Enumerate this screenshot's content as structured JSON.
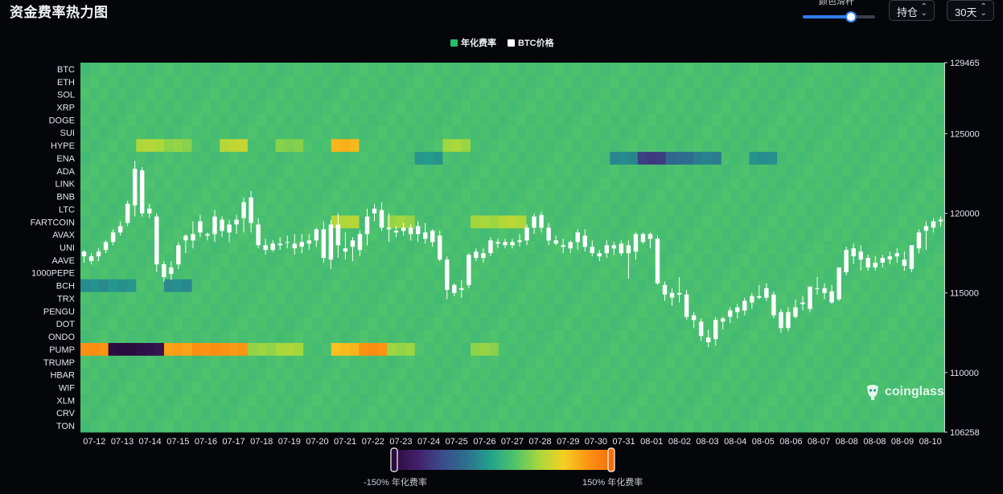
{
  "header": {
    "title": "资金费率热力图",
    "slider_label": "颜色滑杆",
    "slider_value": 0.67,
    "position_select": "持仓",
    "period_select": "30天"
  },
  "legend": {
    "items": [
      {
        "label": "年化费率",
        "color": "#22c06a"
      },
      {
        "label": "BTC价格",
        "color": "#ffffff"
      }
    ]
  },
  "color_scale": {
    "min_label": "-150% 年化费率",
    "max_label": "150% 年化费率",
    "colors": [
      "#2b0a3d",
      "#43206a",
      "#3b4b8c",
      "#2d6f8f",
      "#23a28c",
      "#4fc36b",
      "#a7d83c",
      "#f5cf22",
      "#fb9414",
      "#f56f0c"
    ]
  },
  "watermark": "coinglass",
  "chart_data": {
    "type": "heatmap",
    "title": "资金费率热力图",
    "rows": [
      "BTC",
      "ETH",
      "SOL",
      "XRP",
      "DOGE",
      "SUI",
      "HYPE",
      "ENA",
      "ADA",
      "LINK",
      "BNB",
      "LTC",
      "FARTCOIN",
      "AVAX",
      "UNI",
      "AAVE",
      "1000PEPE",
      "BCH",
      "TRX",
      "PENGU",
      "DOT",
      "ONDO",
      "PUMP",
      "TRUMP",
      "HBAR",
      "WIF",
      "XLM",
      "CRV",
      "TON"
    ],
    "x_labels": [
      "07-12",
      "07-13",
      "07-14",
      "07-15",
      "07-16",
      "07-17",
      "07-18",
      "07-19",
      "07-20",
      "07-21",
      "07-22",
      "07-23",
      "07-24",
      "07-25",
      "07-26",
      "07-27",
      "07-28",
      "07-29",
      "07-30",
      "07-31",
      "08-01",
      "08-02",
      "08-03",
      "08-04",
      "08-05",
      "08-06",
      "08-07",
      "08-08",
      "08-08",
      "08-09",
      "08-10"
    ],
    "colorscale_range": [
      -150,
      150
    ],
    "y2_label": "BTC价格",
    "y2_ticks": [
      129465,
      125000,
      120000,
      115000,
      110000,
      106258
    ],
    "y2_range": [
      106258,
      129465
    ],
    "btc_price_ohlc": [
      [
        117300,
        117700,
        116900,
        117600
      ],
      [
        117000,
        117500,
        116800,
        117300
      ],
      [
        117300,
        117800,
        117000,
        117600
      ],
      [
        117700,
        118300,
        117500,
        118200
      ],
      [
        118200,
        119000,
        118000,
        118800
      ],
      [
        118800,
        119500,
        118600,
        119200
      ],
      [
        119400,
        120800,
        119200,
        120600
      ],
      [
        120500,
        123300,
        119800,
        122800
      ],
      [
        122700,
        122900,
        119800,
        120000
      ],
      [
        120000,
        120600,
        119700,
        120300
      ],
      [
        119800,
        120000,
        116300,
        116800
      ],
      [
        116800,
        117000,
        115700,
        116000
      ],
      [
        116200,
        117000,
        115800,
        116600
      ],
      [
        116800,
        118200,
        116500,
        118000
      ],
      [
        118300,
        118700,
        117500,
        118600
      ],
      [
        118300,
        119500,
        117800,
        118700
      ],
      [
        118800,
        119900,
        118500,
        119500
      ],
      [
        118600,
        118800,
        118300,
        118700
      ],
      [
        118700,
        120200,
        118200,
        119800
      ],
      [
        119600,
        119800,
        118500,
        118900
      ],
      [
        118800,
        119600,
        118200,
        119300
      ],
      [
        119300,
        119900,
        118700,
        119600
      ],
      [
        119700,
        121000,
        118800,
        120700
      ],
      [
        121000,
        121400,
        118800,
        119400
      ],
      [
        119300,
        119700,
        117800,
        118000
      ],
      [
        118000,
        118400,
        117400,
        117700
      ],
      [
        117700,
        118300,
        117600,
        118100
      ],
      [
        118000,
        118500,
        117700,
        118100
      ],
      [
        118200,
        118600,
        117800,
        118200
      ],
      [
        118100,
        118700,
        117400,
        117800
      ],
      [
        117900,
        118700,
        117500,
        118200
      ],
      [
        118100,
        118700,
        117700,
        118300
      ],
      [
        118300,
        119100,
        117900,
        119000
      ],
      [
        119000,
        119500,
        116900,
        117200
      ],
      [
        117100,
        119600,
        116500,
        119300
      ],
      [
        119300,
        120000,
        117200,
        118000
      ],
      [
        117600,
        118800,
        117100,
        117800
      ],
      [
        117900,
        118500,
        117000,
        118300
      ],
      [
        117700,
        118900,
        117300,
        118700
      ],
      [
        118700,
        120300,
        118000,
        119800
      ],
      [
        120000,
        120600,
        119500,
        120300
      ],
      [
        120200,
        120700,
        118900,
        119100
      ],
      [
        119100,
        120000,
        118200,
        119000
      ],
      [
        118900,
        119200,
        118500,
        118800
      ],
      [
        118900,
        119400,
        118600,
        119100
      ],
      [
        119100,
        119300,
        118300,
        118700
      ],
      [
        118700,
        119500,
        118200,
        119200
      ],
      [
        118800,
        119400,
        118100,
        118400
      ],
      [
        118200,
        119000,
        117900,
        118900
      ],
      [
        118600,
        118900,
        117000,
        117100
      ],
      [
        117100,
        117300,
        114600,
        115200
      ],
      [
        115000,
        115600,
        114800,
        115500
      ],
      [
        115200,
        115800,
        114700,
        115300
      ],
      [
        115500,
        117500,
        115300,
        117400
      ],
      [
        117200,
        117800,
        117000,
        117600
      ],
      [
        117200,
        117800,
        116900,
        117500
      ],
      [
        117500,
        118500,
        117300,
        118300
      ],
      [
        118200,
        118400,
        117800,
        118100
      ],
      [
        118000,
        118400,
        117800,
        118200
      ],
      [
        118000,
        118400,
        117800,
        118200
      ],
      [
        118200,
        118700,
        117900,
        118300
      ],
      [
        118300,
        119300,
        118000,
        119100
      ],
      [
        119100,
        120000,
        118700,
        119800
      ],
      [
        119900,
        120100,
        118800,
        119100
      ],
      [
        119100,
        119400,
        118000,
        118300
      ],
      [
        118300,
        118600,
        118000,
        118100
      ],
      [
        118000,
        118400,
        117500,
        117900
      ],
      [
        117800,
        118300,
        117500,
        118200
      ],
      [
        118200,
        119000,
        117700,
        118800
      ],
      [
        118600,
        119000,
        117600,
        117900
      ],
      [
        117900,
        118300,
        117300,
        117500
      ],
      [
        117500,
        117700,
        117000,
        117300
      ],
      [
        117500,
        118300,
        117200,
        118000
      ],
      [
        118000,
        118200,
        117400,
        117800
      ],
      [
        117500,
        118300,
        117300,
        118100
      ],
      [
        118000,
        118300,
        115900,
        117500
      ],
      [
        117600,
        118800,
        117100,
        118700
      ],
      [
        118700,
        118800,
        118100,
        118200
      ],
      [
        118400,
        118800,
        117800,
        118700
      ],
      [
        118400,
        118600,
        115500,
        115600
      ],
      [
        115500,
        115700,
        114500,
        114900
      ],
      [
        115000,
        115300,
        114200,
        114700
      ],
      [
        114900,
        116000,
        114400,
        115000
      ],
      [
        114900,
        115200,
        113300,
        113500
      ],
      [
        113600,
        113800,
        112800,
        113300
      ],
      [
        113200,
        113400,
        112000,
        112300
      ],
      [
        112200,
        112700,
        111600,
        111900
      ],
      [
        112100,
        113500,
        111700,
        113300
      ],
      [
        113200,
        113500,
        112700,
        113400
      ],
      [
        113500,
        114100,
        113100,
        113900
      ],
      [
        113800,
        114300,
        113400,
        114100
      ],
      [
        113900,
        114700,
        113600,
        114500
      ],
      [
        114400,
        115000,
        114000,
        114800
      ],
      [
        114700,
        115500,
        114600,
        114800
      ],
      [
        114700,
        115600,
        114500,
        115300
      ],
      [
        114900,
        115100,
        113400,
        113600
      ],
      [
        113800,
        114000,
        112500,
        112800
      ],
      [
        112800,
        114100,
        112600,
        113800
      ],
      [
        113500,
        114600,
        113400,
        114100
      ],
      [
        114400,
        114800,
        113900,
        114300
      ],
      [
        114000,
        115400,
        113800,
        115400
      ],
      [
        115300,
        116000,
        114900,
        115300
      ],
      [
        115300,
        115600,
        114600,
        115000
      ],
      [
        114400,
        115500,
        114300,
        115100
      ],
      [
        114600,
        116600,
        114500,
        116600
      ],
      [
        116300,
        117900,
        116100,
        117700
      ],
      [
        117300,
        118100,
        116800,
        117800
      ],
      [
        117600,
        118000,
        116400,
        117100
      ],
      [
        117200,
        117400,
        116400,
        116600
      ],
      [
        116600,
        117300,
        116400,
        116900
      ],
      [
        116900,
        117400,
        116600,
        117200
      ],
      [
        117100,
        117600,
        116800,
        117300
      ],
      [
        117300,
        117800,
        116900,
        117500
      ],
      [
        117100,
        117600,
        116400,
        116700
      ],
      [
        116500,
        118000,
        116300,
        118000
      ],
      [
        117800,
        119000,
        117500,
        118800
      ],
      [
        118900,
        119500,
        117700,
        119200
      ],
      [
        119100,
        119700,
        118800,
        119500
      ],
      [
        119500,
        119800,
        119200,
        119600
      ]
    ],
    "values": {
      "default": 12,
      "cells": [
        {
          "row": "HYPE",
          "x": "07-14",
          "v": 55
        },
        {
          "row": "HYPE",
          "x": "07-15",
          "v": 40
        },
        {
          "row": "HYPE",
          "x": "07-17",
          "v": 60
        },
        {
          "row": "HYPE",
          "x": "07-19",
          "v": 38
        },
        {
          "row": "HYPE",
          "x": "07-21",
          "v": 100
        },
        {
          "row": "HYPE",
          "x": "07-25",
          "v": 48
        },
        {
          "row": "ENA",
          "x": "07-24",
          "v": -25
        },
        {
          "row": "ENA",
          "x": "07-31",
          "v": -35
        },
        {
          "row": "ENA",
          "x": "08-01",
          "v": -95
        },
        {
          "row": "ENA",
          "x": "08-02",
          "v": -55
        },
        {
          "row": "ENA",
          "x": "08-03",
          "v": -40
        },
        {
          "row": "ENA",
          "x": "08-05",
          "v": -30
        },
        {
          "row": "FARTCOIN",
          "x": "07-21",
          "v": 55
        },
        {
          "row": "FARTCOIN",
          "x": "07-23",
          "v": 45
        },
        {
          "row": "FARTCOIN",
          "x": "07-26",
          "v": 50
        },
        {
          "row": "FARTCOIN",
          "x": "07-27",
          "v": 55
        },
        {
          "row": "BCH",
          "x": "07-12",
          "v": -30
        },
        {
          "row": "BCH",
          "x": "07-13",
          "v": -25
        },
        {
          "row": "BCH",
          "x": "07-15",
          "v": -30
        },
        {
          "row": "PUMP",
          "x": "07-12",
          "v": 120
        },
        {
          "row": "PUMP",
          "x": "07-13",
          "v": -150
        },
        {
          "row": "PUMP",
          "x": "07-14",
          "v": -140
        },
        {
          "row": "PUMP",
          "x": "07-15",
          "v": 110
        },
        {
          "row": "PUMP",
          "x": "07-16",
          "v": 120
        },
        {
          "row": "PUMP",
          "x": "07-17",
          "v": 115
        },
        {
          "row": "PUMP",
          "x": "07-18",
          "v": 45
        },
        {
          "row": "PUMP",
          "x": "07-19",
          "v": 50
        },
        {
          "row": "PUMP",
          "x": "07-21",
          "v": 95
        },
        {
          "row": "PUMP",
          "x": "07-22",
          "v": 120
        },
        {
          "row": "PUMP",
          "x": "07-23",
          "v": 45
        },
        {
          "row": "PUMP",
          "x": "07-26",
          "v": 40
        }
      ]
    }
  }
}
